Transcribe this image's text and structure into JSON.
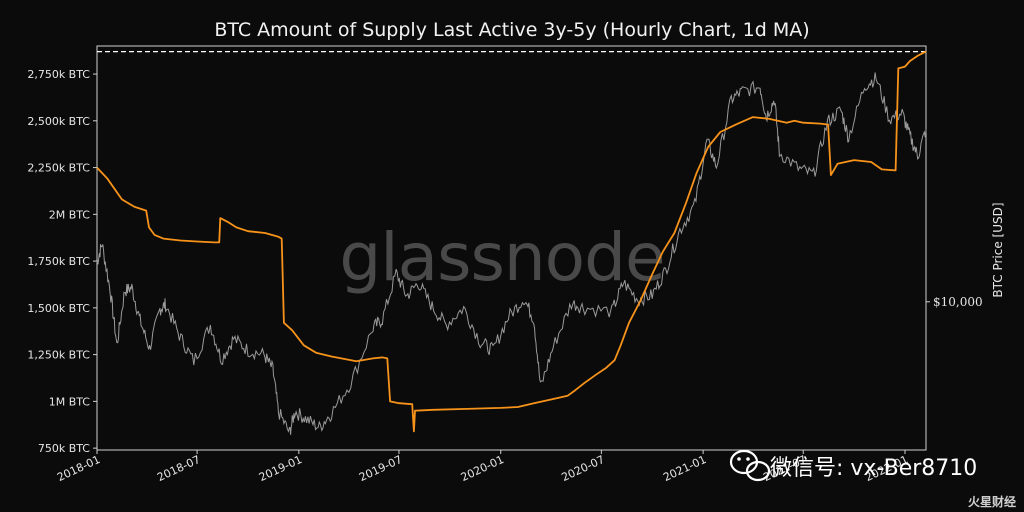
{
  "chart_data": {
    "type": "line",
    "title": "BTC Amount of Supply Last Active 3y-5y (Hourly Chart, 1d MA)",
    "xlabel": "",
    "ylabel": "",
    "ylabel_right": "BTC Price [USD]",
    "x_ticks": [
      "2018-01",
      "2018-07",
      "2019-01",
      "2019-07",
      "2020-01",
      "2020-07",
      "2021-01",
      "2021-07",
      "2022-01"
    ],
    "y_ticks": [
      {
        "value": 750,
        "label": "750k BTC"
      },
      {
        "value": 1000,
        "label": "1M BTC"
      },
      {
        "value": 1250,
        "label": "1,250k BTC"
      },
      {
        "value": 1500,
        "label": "1,500k BTC"
      },
      {
        "value": 1750,
        "label": "1,750k BTC"
      },
      {
        "value": 2000,
        "label": "2M BTC"
      },
      {
        "value": 2250,
        "label": "2,250k BTC"
      },
      {
        "value": 2500,
        "label": "2,500k BTC"
      },
      {
        "value": 2750,
        "label": "2,750k BTC"
      }
    ],
    "y_right_ticks": [
      {
        "value": 10000,
        "label": "$10,000"
      }
    ],
    "ylim": [
      740,
      2900
    ],
    "y_right_scale": "log",
    "y_right_lim": [
      2800,
      90000
    ],
    "xlim": [
      "2018-01-01",
      "2022-02-08"
    ],
    "grid": false,
    "reference_line": {
      "value": 2870,
      "style": "dashed",
      "color": "#ffffff"
    },
    "series": [
      {
        "axis": "left",
        "color": "#f7931a",
        "values": [
          [
            "2018-01-01",
            2250
          ],
          [
            "2018-01-20",
            2190
          ],
          [
            "2018-02-15",
            2080
          ],
          [
            "2018-03-10",
            2040
          ],
          [
            "2018-03-31",
            2020
          ],
          [
            "2018-04-05",
            1930
          ],
          [
            "2018-04-15",
            1890
          ],
          [
            "2018-05-01",
            1870
          ],
          [
            "2018-06-01",
            1860
          ],
          [
            "2018-07-01",
            1855
          ],
          [
            "2018-08-01",
            1850
          ],
          [
            "2018-08-10",
            1850
          ],
          [
            "2018-08-12",
            1980
          ],
          [
            "2018-08-25",
            1960
          ],
          [
            "2018-09-10",
            1930
          ],
          [
            "2018-10-01",
            1910
          ],
          [
            "2018-11-01",
            1900
          ],
          [
            "2018-11-25",
            1880
          ],
          [
            "2018-12-01",
            1870
          ],
          [
            "2018-12-05",
            1420
          ],
          [
            "2018-12-20",
            1380
          ],
          [
            "2019-01-10",
            1300
          ],
          [
            "2019-02-01",
            1260
          ],
          [
            "2019-03-01",
            1240
          ],
          [
            "2019-04-15",
            1215
          ],
          [
            "2019-05-15",
            1230
          ],
          [
            "2019-06-01",
            1235
          ],
          [
            "2019-06-10",
            1230
          ],
          [
            "2019-06-15",
            1000
          ],
          [
            "2019-07-01",
            990
          ],
          [
            "2019-07-25",
            985
          ],
          [
            "2019-07-28",
            840
          ],
          [
            "2019-07-30",
            950
          ],
          [
            "2019-09-01",
            955
          ],
          [
            "2019-11-01",
            960
          ],
          [
            "2020-01-01",
            965
          ],
          [
            "2020-02-01",
            970
          ],
          [
            "2020-03-01",
            990
          ],
          [
            "2020-04-01",
            1010
          ],
          [
            "2020-05-01",
            1030
          ],
          [
            "2020-05-15",
            1060
          ],
          [
            "2020-06-01",
            1100
          ],
          [
            "2020-06-20",
            1140
          ],
          [
            "2020-07-10",
            1180
          ],
          [
            "2020-07-25",
            1220
          ],
          [
            "2020-08-05",
            1300
          ],
          [
            "2020-08-20",
            1420
          ],
          [
            "2020-09-10",
            1540
          ],
          [
            "2020-10-01",
            1680
          ],
          [
            "2020-10-20",
            1800
          ],
          [
            "2020-11-10",
            1900
          ],
          [
            "2020-12-01",
            2060
          ],
          [
            "2020-12-20",
            2220
          ],
          [
            "2021-01-10",
            2360
          ],
          [
            "2021-02-01",
            2440
          ],
          [
            "2021-03-01",
            2480
          ],
          [
            "2021-04-01",
            2520
          ],
          [
            "2021-05-01",
            2510
          ],
          [
            "2021-06-01",
            2490
          ],
          [
            "2021-06-15",
            2500
          ],
          [
            "2021-07-01",
            2490
          ],
          [
            "2021-08-01",
            2485
          ],
          [
            "2021-08-15",
            2480
          ],
          [
            "2021-08-20",
            2210
          ],
          [
            "2021-09-01",
            2270
          ],
          [
            "2021-10-01",
            2290
          ],
          [
            "2021-11-01",
            2280
          ],
          [
            "2021-11-20",
            2240
          ],
          [
            "2021-12-15",
            2235
          ],
          [
            "2021-12-20",
            2780
          ],
          [
            "2022-01-01",
            2790
          ],
          [
            "2022-01-10",
            2820
          ],
          [
            "2022-01-25",
            2850
          ],
          [
            "2022-02-08",
            2870
          ]
        ]
      },
      {
        "axis": "right",
        "color": "#9a9a9a",
        "values": [
          [
            "2018-01-01",
            14000
          ],
          [
            "2018-01-10",
            16500
          ],
          [
            "2018-01-25",
            11000
          ],
          [
            "2018-02-06",
            6900
          ],
          [
            "2018-02-20",
            11000
          ],
          [
            "2018-03-05",
            11300
          ],
          [
            "2018-03-20",
            8500
          ],
          [
            "2018-04-06",
            6700
          ],
          [
            "2018-04-25",
            9400
          ],
          [
            "2018-05-05",
            9800
          ],
          [
            "2018-05-30",
            7500
          ],
          [
            "2018-06-25",
            6000
          ],
          [
            "2018-07-25",
            8200
          ],
          [
            "2018-08-14",
            6100
          ],
          [
            "2018-09-05",
            7300
          ],
          [
            "2018-10-01",
            6600
          ],
          [
            "2018-10-30",
            6350
          ],
          [
            "2018-11-15",
            5600
          ],
          [
            "2018-11-25",
            3900
          ],
          [
            "2018-12-15",
            3250
          ],
          [
            "2018-12-25",
            3900
          ],
          [
            "2019-01-15",
            3650
          ],
          [
            "2019-02-07",
            3400
          ],
          [
            "2019-03-01",
            3850
          ],
          [
            "2019-04-05",
            5000
          ],
          [
            "2019-05-15",
            8000
          ],
          [
            "2019-06-01",
            8600
          ],
          [
            "2019-06-26",
            12800
          ],
          [
            "2019-07-15",
            10500
          ],
          [
            "2019-08-05",
            11800
          ],
          [
            "2019-08-30",
            9600
          ],
          [
            "2019-09-24",
            8200
          ],
          [
            "2019-10-26",
            9500
          ],
          [
            "2019-11-25",
            7100
          ],
          [
            "2019-12-18",
            6600
          ],
          [
            "2020-01-15",
            8800
          ],
          [
            "2020-02-12",
            10300
          ],
          [
            "2020-03-01",
            8600
          ],
          [
            "2020-03-13",
            4800
          ],
          [
            "2020-04-05",
            6800
          ],
          [
            "2020-05-08",
            9900
          ],
          [
            "2020-06-01",
            9500
          ],
          [
            "2020-07-20",
            9200
          ],
          [
            "2020-08-10",
            11800
          ],
          [
            "2020-09-05",
            10200
          ],
          [
            "2020-10-01",
            10600
          ],
          [
            "2020-10-25",
            13100
          ],
          [
            "2020-11-20",
            18500
          ],
          [
            "2020-12-17",
            23000
          ],
          [
            "2021-01-08",
            40000
          ],
          [
            "2021-01-25",
            32000
          ],
          [
            "2021-02-21",
            57000
          ],
          [
            "2021-03-13",
            61000
          ],
          [
            "2021-04-14",
            63500
          ],
          [
            "2021-04-25",
            49000
          ],
          [
            "2021-05-10",
            57000
          ],
          [
            "2021-05-19",
            36000
          ],
          [
            "2021-06-22",
            31500
          ],
          [
            "2021-07-20",
            29800
          ],
          [
            "2021-08-14",
            47000
          ],
          [
            "2021-09-07",
            52000
          ],
          [
            "2021-09-21",
            41000
          ],
          [
            "2021-10-20",
            64000
          ],
          [
            "2021-11-10",
            68500
          ],
          [
            "2021-12-04",
            48000
          ],
          [
            "2021-12-27",
            50500
          ],
          [
            "2022-01-10",
            41500
          ],
          [
            "2022-01-24",
            35000
          ],
          [
            "2022-02-08",
            44000
          ]
        ]
      }
    ]
  },
  "watermark_text": "glassnode",
  "overlay": {
    "wechat_text": "微信号: vx-Ber8710",
    "corner_brand": "火星财经"
  }
}
